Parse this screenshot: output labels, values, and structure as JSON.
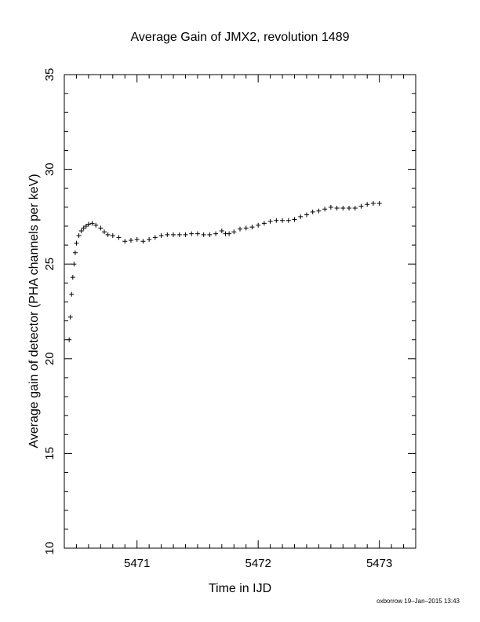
{
  "chart_data": {
    "type": "scatter",
    "title": "Average Gain of JMX2, revolution 1489",
    "xlabel": "Time in IJD",
    "ylabel": "Average gain of detector (PHA channels per keV)",
    "xlim": [
      5470.4,
      5473.3
    ],
    "ylim": [
      10,
      35
    ],
    "xticks": [
      5471,
      5472,
      5473
    ],
    "yticks": [
      10,
      15,
      20,
      25,
      30,
      35
    ],
    "marker": "+",
    "grid": false,
    "series": [
      {
        "x": [
          5470.44,
          5470.45,
          5470.46,
          5470.47,
          5470.48,
          5470.49,
          5470.5,
          5470.52,
          5470.54,
          5470.56,
          5470.58,
          5470.6,
          5470.63,
          5470.66,
          5470.7,
          5470.73,
          5470.76,
          5470.8,
          5470.85,
          5470.9,
          5470.95,
          5471.0,
          5471.05,
          5471.1,
          5471.15,
          5471.2,
          5471.25,
          5471.3,
          5471.35,
          5471.4,
          5471.45,
          5471.5,
          5471.55,
          5471.6,
          5471.65,
          5471.7,
          5471.73,
          5471.76,
          5471.8,
          5471.85,
          5471.9,
          5471.95,
          5472.0,
          5472.05,
          5472.1,
          5472.15,
          5472.2,
          5472.25,
          5472.3,
          5472.35,
          5472.4,
          5472.45,
          5472.5,
          5472.55,
          5472.6,
          5472.65,
          5472.7,
          5472.75,
          5472.8,
          5472.85,
          5472.9,
          5472.95,
          5473.0
        ],
        "y": [
          21.0,
          22.2,
          23.4,
          24.3,
          25.0,
          25.6,
          26.1,
          26.5,
          26.75,
          26.9,
          27.0,
          27.1,
          27.15,
          27.05,
          26.9,
          26.7,
          26.55,
          26.5,
          26.4,
          26.2,
          26.25,
          26.3,
          26.2,
          26.3,
          26.4,
          26.5,
          26.55,
          26.55,
          26.55,
          26.55,
          26.6,
          26.6,
          26.55,
          26.55,
          26.6,
          26.75,
          26.6,
          26.6,
          26.7,
          26.85,
          26.9,
          26.95,
          27.05,
          27.15,
          27.25,
          27.3,
          27.3,
          27.3,
          27.35,
          27.5,
          27.6,
          27.75,
          27.8,
          27.9,
          28.0,
          27.95,
          27.95,
          27.95,
          27.95,
          28.05,
          28.15,
          28.2,
          28.2
        ]
      }
    ]
  },
  "footer": "oxborrow 19–Jan–2015 13:43"
}
